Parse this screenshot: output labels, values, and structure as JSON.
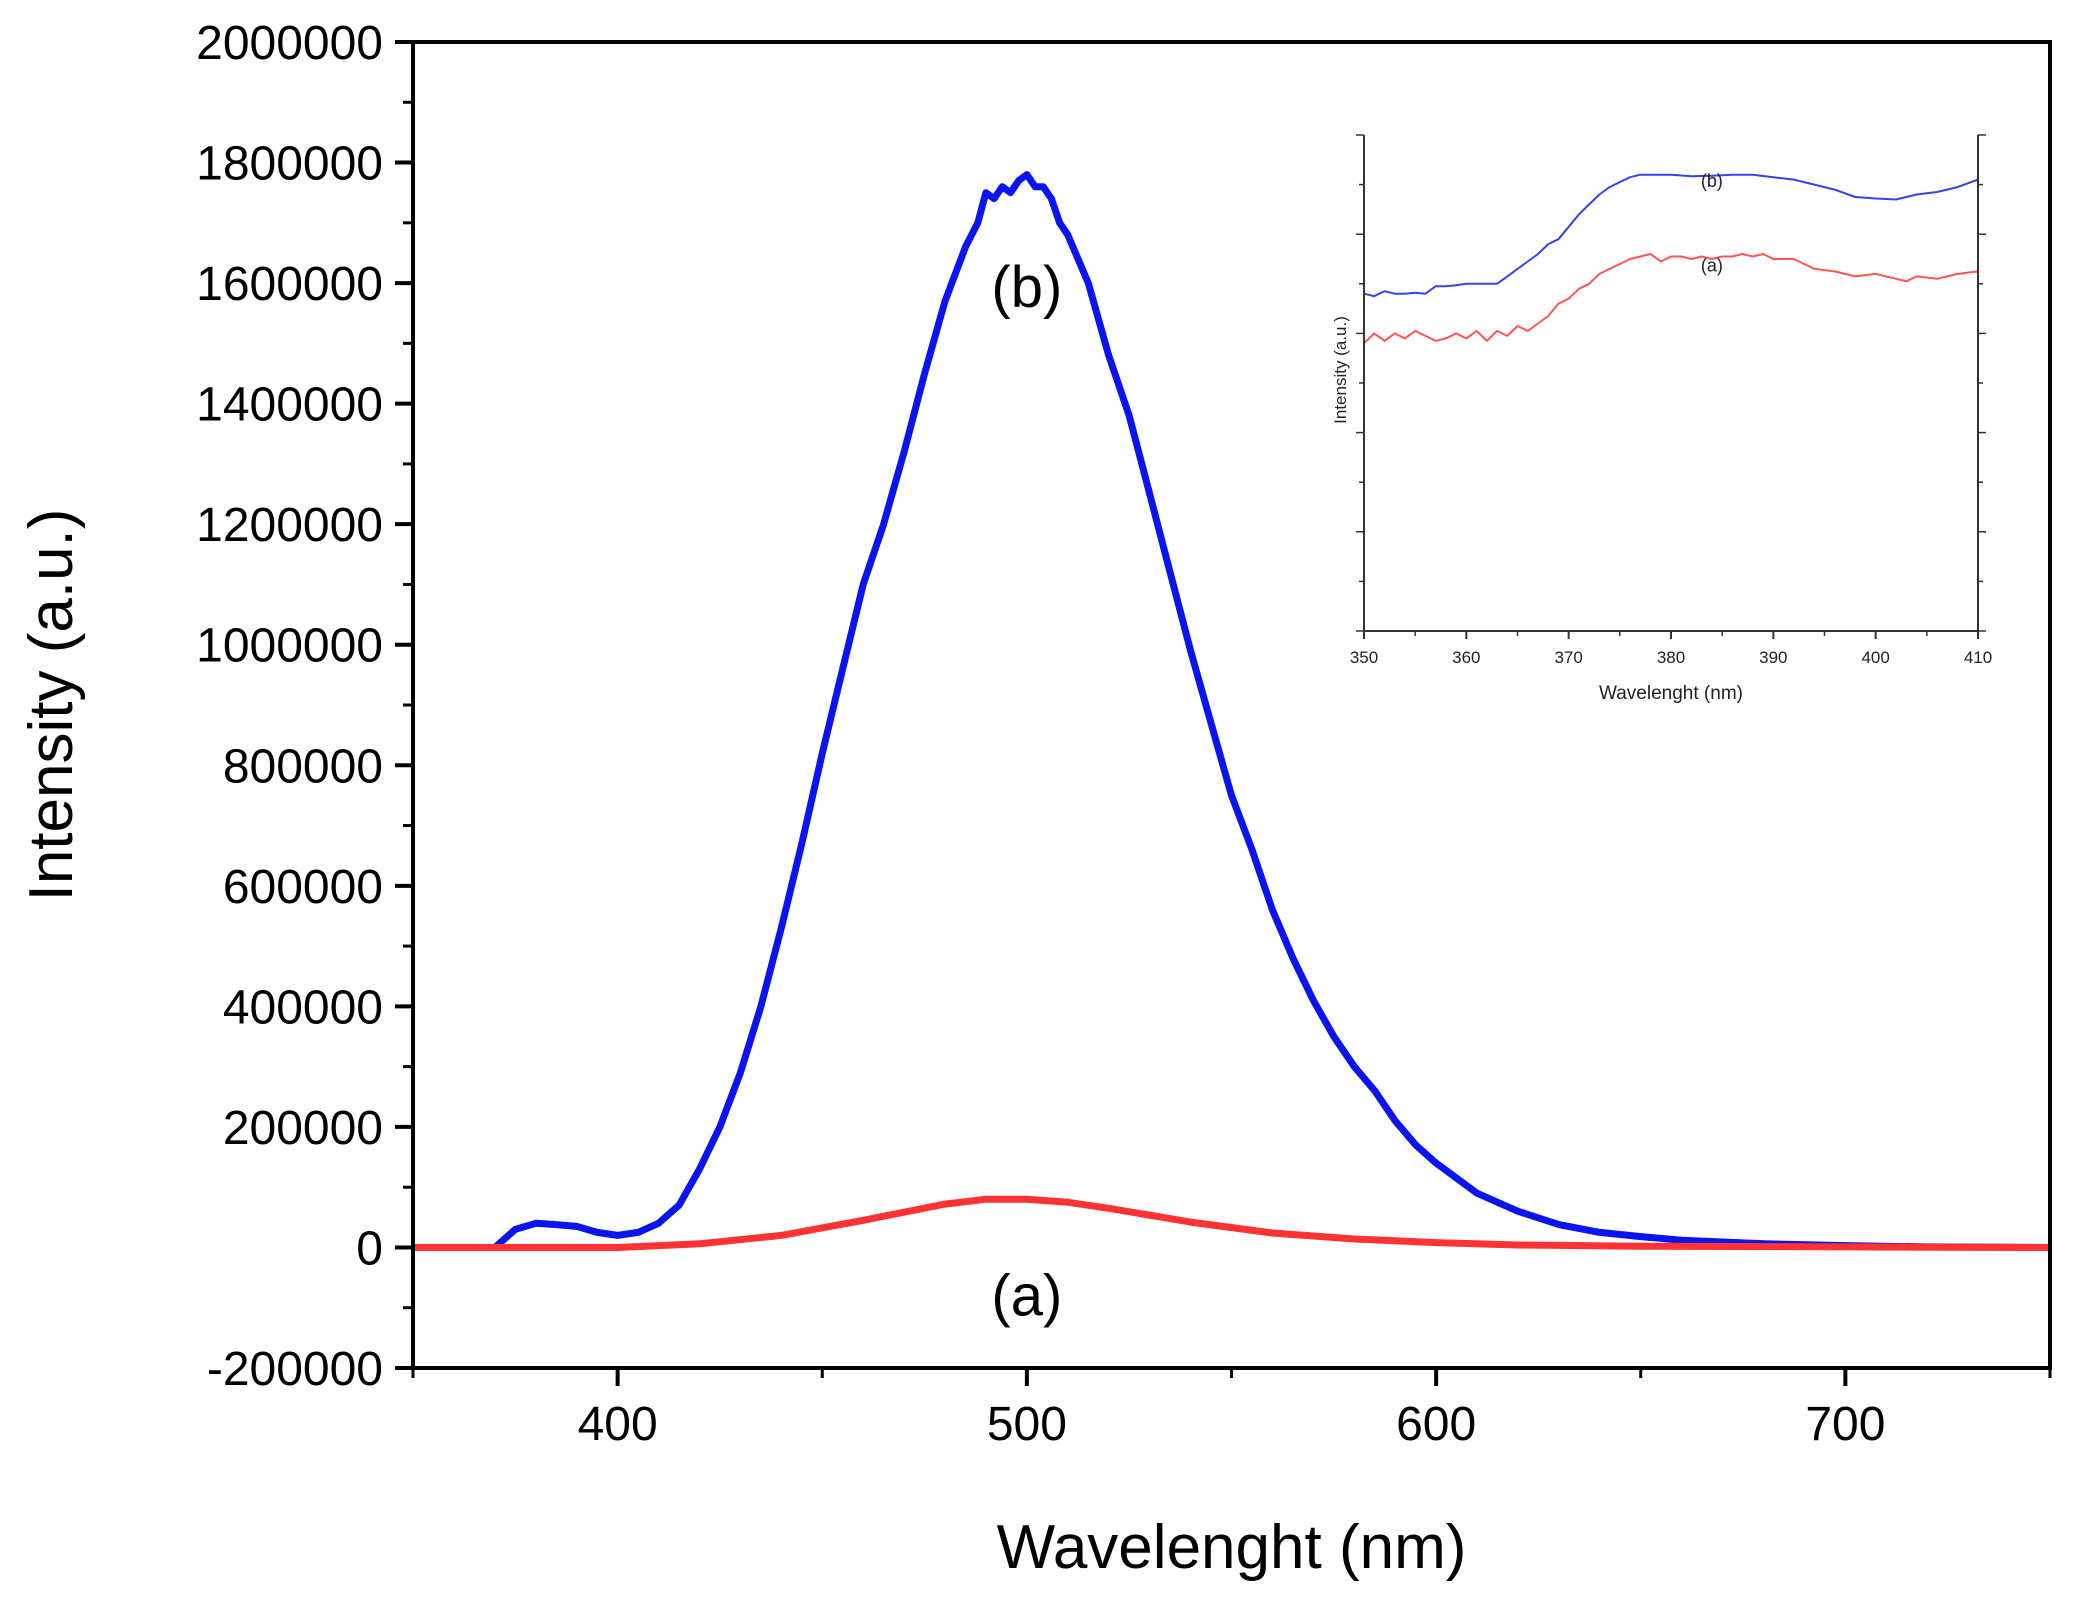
{
  "chart_data": [
    {
      "type": "line",
      "title": "",
      "xlabel": "Wavelenght (nm)",
      "ylabel": "Intensity (a.u.)",
      "xlim": [
        350,
        750
      ],
      "ylim": [
        -200000,
        2000000
      ],
      "xticks": [
        400,
        500,
        600,
        700
      ],
      "yticks": [
        -200000,
        0,
        200000,
        400000,
        600000,
        800000,
        1000000,
        1200000,
        1400000,
        1600000,
        1800000,
        2000000
      ],
      "ytick_labels": [
        "-200000",
        "0",
        "200000",
        "400000",
        "600000",
        "800000",
        "1000000",
        "1200000",
        "1400000",
        "1600000",
        "1800000",
        "2000000"
      ],
      "xtick_labels": [
        "400",
        "500",
        "600",
        "700"
      ],
      "series": [
        {
          "name": "(a)",
          "color": "#ff3333",
          "x": [
            350,
            400,
            420,
            440,
            460,
            480,
            490,
            500,
            510,
            520,
            540,
            560,
            580,
            600,
            620,
            650,
            700,
            750
          ],
          "y": [
            0,
            0,
            6000,
            20000,
            45000,
            72000,
            80000,
            80000,
            75000,
            65000,
            42000,
            24000,
            14000,
            8000,
            4000,
            2000,
            1000,
            0
          ]
        },
        {
          "name": "(b)",
          "color": "#0a14f0",
          "x": [
            350,
            370,
            375,
            380,
            385,
            390,
            395,
            400,
            405,
            410,
            415,
            420,
            425,
            430,
            435,
            440,
            445,
            450,
            455,
            460,
            465,
            470,
            475,
            480,
            485,
            488,
            490,
            492,
            494,
            496,
            498,
            500,
            502,
            504,
            506,
            508,
            510,
            515,
            520,
            525,
            530,
            535,
            540,
            545,
            550,
            555,
            560,
            565,
            570,
            575,
            580,
            585,
            590,
            595,
            600,
            610,
            620,
            630,
            640,
            650,
            660,
            680,
            700,
            720,
            750
          ],
          "y": [
            0,
            0,
            30000,
            40000,
            38000,
            35000,
            25000,
            20000,
            25000,
            40000,
            70000,
            130000,
            200000,
            290000,
            400000,
            530000,
            670000,
            820000,
            960000,
            1100000,
            1200000,
            1320000,
            1450000,
            1570000,
            1660000,
            1700000,
            1750000,
            1740000,
            1760000,
            1750000,
            1770000,
            1780000,
            1760000,
            1760000,
            1740000,
            1700000,
            1680000,
            1600000,
            1480000,
            1380000,
            1250000,
            1120000,
            990000,
            870000,
            750000,
            660000,
            560000,
            480000,
            410000,
            350000,
            300000,
            260000,
            210000,
            170000,
            140000,
            90000,
            60000,
            38000,
            25000,
            18000,
            12000,
            6000,
            3000,
            1000,
            0
          ]
        }
      ],
      "annotations": [
        {
          "text": "(b)",
          "x": 500,
          "y": 1560000,
          "color": "#0a14f0"
        },
        {
          "text": "(a)",
          "x": 500,
          "y": -30000,
          "color": "#ff3333"
        }
      ]
    },
    {
      "type": "line",
      "inset": true,
      "title": "",
      "xlabel": "Wavelenght (nm)",
      "ylabel": "Intensity (a.u.)",
      "xlim": [
        350,
        410
      ],
      "ylim": [
        0,
        100
      ],
      "xticks": [
        350,
        360,
        370,
        380,
        390,
        400,
        410
      ],
      "xtick_labels": [
        "350",
        "360",
        "370",
        "380",
        "390",
        "400",
        "410"
      ],
      "series": [
        {
          "name": "(b)",
          "color": "#3344ee",
          "x": [
            350,
            351,
            352,
            353,
            354,
            355,
            356,
            357,
            358,
            359,
            360,
            361,
            362,
            363,
            364,
            365,
            366,
            367,
            368,
            369,
            370,
            371,
            372,
            373,
            374,
            375,
            376,
            377,
            378,
            380,
            382,
            384,
            386,
            388,
            390,
            392,
            394,
            396,
            398,
            400,
            402,
            404,
            406,
            408,
            410
          ],
          "y": [
            68,
            67.5,
            68.5,
            68,
            68,
            68.2,
            68,
            69.5,
            69.5,
            69.7,
            70,
            70,
            70,
            70,
            71.5,
            73,
            74.5,
            76,
            78,
            79,
            81.5,
            84,
            86,
            88,
            89.5,
            90.5,
            91.5,
            92,
            92,
            92,
            91.7,
            91.8,
            92,
            92,
            91.5,
            91,
            90,
            89,
            87.5,
            87.2,
            87,
            88,
            88.5,
            89.5,
            91
          ]
        },
        {
          "name": "(a)",
          "color": "#ff5555",
          "x": [
            350,
            351,
            352,
            353,
            354,
            355,
            356,
            357,
            358,
            359,
            360,
            361,
            362,
            363,
            364,
            365,
            366,
            367,
            368,
            369,
            370,
            371,
            372,
            373,
            374,
            375,
            376,
            377,
            378,
            379,
            380,
            381,
            382,
            383,
            384,
            385,
            386,
            387,
            388,
            389,
            390,
            392,
            394,
            396,
            398,
            400,
            402,
            403,
            404,
            406,
            408,
            410
          ],
          "y": [
            58,
            60,
            58.5,
            60,
            59,
            60.5,
            59.5,
            58.5,
            59,
            60,
            59,
            60.5,
            58.5,
            60.5,
            59.5,
            61.5,
            60.5,
            62,
            63.5,
            66,
            67,
            69,
            70,
            72,
            73,
            74,
            75,
            75.5,
            76,
            74.5,
            75.5,
            75.5,
            75,
            75.5,
            75,
            75.5,
            75.5,
            76,
            75.5,
            76,
            75,
            75,
            73,
            72.5,
            71.5,
            72,
            71,
            70.5,
            71.5,
            71,
            72,
            72.5
          ]
        }
      ],
      "annotations": [
        {
          "text": "(b)",
          "x": 384,
          "y": 89.5,
          "color": "#3344ee"
        },
        {
          "text": "(a)",
          "x": 384,
          "y": 72.5,
          "color": "#ff5555"
        }
      ]
    }
  ]
}
